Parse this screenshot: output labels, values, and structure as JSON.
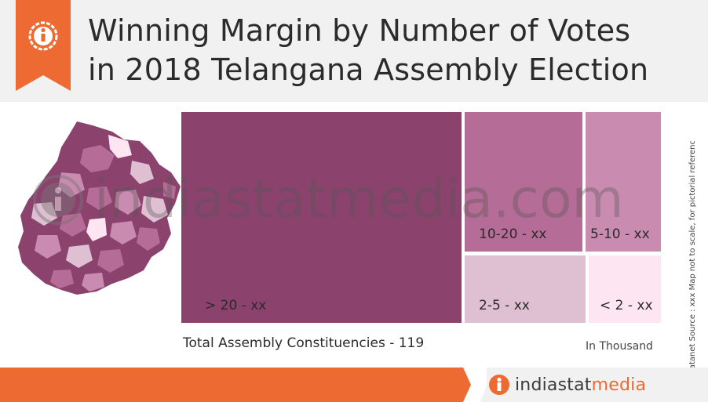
{
  "header": {
    "title_line1": "Winning Margin by Number of Votes",
    "title_line2": "in 2018 Telangana Assembly Election",
    "info_icon": "info-icon"
  },
  "chart_data": {
    "type": "treemap",
    "blocks": [
      {
        "label": "> 20 - xx",
        "color": "#8b436e"
      },
      {
        "label": "10-20 - xx",
        "color": "#b56c96"
      },
      {
        "label": "5-10 - xx",
        "color": "#c98bb0"
      },
      {
        "label": "2-5 - xx",
        "color": "#dfc0d2"
      },
      {
        "label": "< 2 - xx",
        "color": "#fde6f1"
      }
    ]
  },
  "footer": {
    "total_label": "Total Assembly Constituencies - 119",
    "unit_label": "In Thousand",
    "side_note": "© Datanet  Source : xxx   Map not to scale, for pictorial reference only."
  },
  "watermark": "indiastatmedia.com",
  "brand": {
    "name_part1": "indiastat",
    "name_part2": "media",
    "logo_icon": "info-icon"
  },
  "colors": {
    "accent": "#ee6a33",
    "text": "#2b2b2b"
  }
}
